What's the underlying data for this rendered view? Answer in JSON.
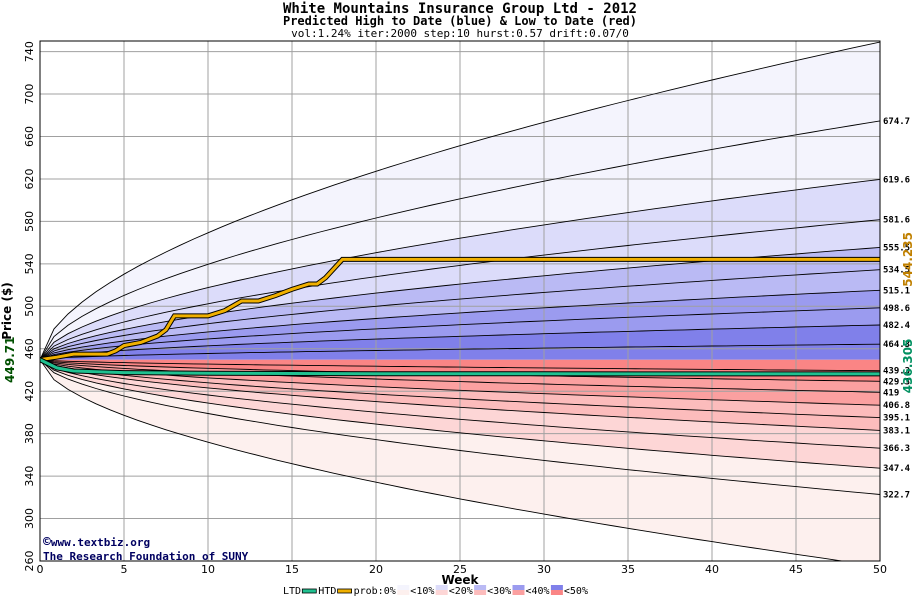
{
  "chart_data": {
    "type": "area",
    "title": "White Mountains Insurance Group Ltd - 2012",
    "subtitle": "Predicted High to Date (blue) &  Low to Date (red)",
    "params": "vol:1.24% iter:2000 step:10 hurst:0.57 drift:0.07/0",
    "xlabel": "Week",
    "ylabel": "Price ($)",
    "xlim": [
      0,
      50
    ],
    "ylim": [
      260,
      750
    ],
    "x_ticks": [
      0,
      5,
      10,
      15,
      20,
      25,
      30,
      35,
      40,
      45,
      50
    ],
    "y_ticks": [
      260,
      300,
      340,
      380,
      420,
      460,
      500,
      540,
      580,
      620,
      660,
      700,
      740
    ],
    "grid": true,
    "start_price": 449.71,
    "start_label": "449.71",
    "htd_label": "544.235",
    "ltd_label": "436.305",
    "band_colors": [
      "#f4f4fd",
      "#dcdcfa",
      "#babaf4",
      "#9b9bef",
      "#8080ea",
      "#fdf0ee",
      "#fdd6d6",
      "#fcbcbc",
      "#fba0a0",
      "#fa8585"
    ],
    "high_quantiles": [
      {
        "end": 749.0,
        "label": ""
      },
      {
        "end": 674.7,
        "label": "674.7"
      },
      {
        "end": 619.6,
        "label": "619.6"
      },
      {
        "end": 581.6,
        "label": "581.6"
      },
      {
        "end": 555.5,
        "label": "555.5"
      },
      {
        "end": 534.5,
        "label": "534.5"
      },
      {
        "end": 515.1,
        "label": "515.1"
      },
      {
        "end": 498.6,
        "label": "498.6"
      },
      {
        "end": 482.4,
        "label": "482.4"
      },
      {
        "end": 464.3,
        "label": "464.3"
      }
    ],
    "low_quantiles": [
      {
        "end": 439.3,
        "label": "439.3"
      },
      {
        "end": 429.3,
        "label": "429.3"
      },
      {
        "end": 419.0,
        "label": "419"
      },
      {
        "end": 406.8,
        "label": "406.8"
      },
      {
        "end": 395.1,
        "label": "395.1"
      },
      {
        "end": 383.1,
        "label": "383.1"
      },
      {
        "end": 366.3,
        "label": "366.3"
      },
      {
        "end": 347.4,
        "label": "347.4"
      },
      {
        "end": 322.7,
        "label": "322.7"
      },
      {
        "end": 255.0,
        "label": ""
      }
    ],
    "htd_series": {
      "name": "HTD",
      "color": "#f0b000",
      "x": [
        0,
        1,
        2,
        3,
        4,
        4.5,
        5,
        6,
        7,
        7.5,
        8,
        10,
        11,
        12,
        13,
        14,
        15,
        16,
        16.5,
        17,
        18,
        50
      ],
      "y": [
        449.7,
        452,
        455,
        455,
        455,
        458,
        463,
        466,
        472,
        478,
        491,
        491,
        496,
        505,
        505,
        510,
        516,
        521,
        521,
        527,
        544.2,
        544.2
      ]
    },
    "ltd_series": {
      "name": "LTD",
      "color": "#20c090",
      "x": [
        0,
        1,
        2,
        5,
        10,
        15,
        20,
        30,
        40,
        50
      ],
      "y": [
        449.7,
        442,
        439,
        437.5,
        437,
        436.7,
        436.5,
        436.4,
        436.3,
        436.3
      ]
    },
    "legend": {
      "position": "bottom",
      "items": [
        "LTD",
        "HTD",
        "prob:0%",
        "<10%",
        "<20%",
        "<30%",
        "<40%",
        "<50%"
      ]
    }
  },
  "watermark": {
    "line1": "www.textbiz.org",
    "line2": "The Research Foundation of SUNY"
  }
}
